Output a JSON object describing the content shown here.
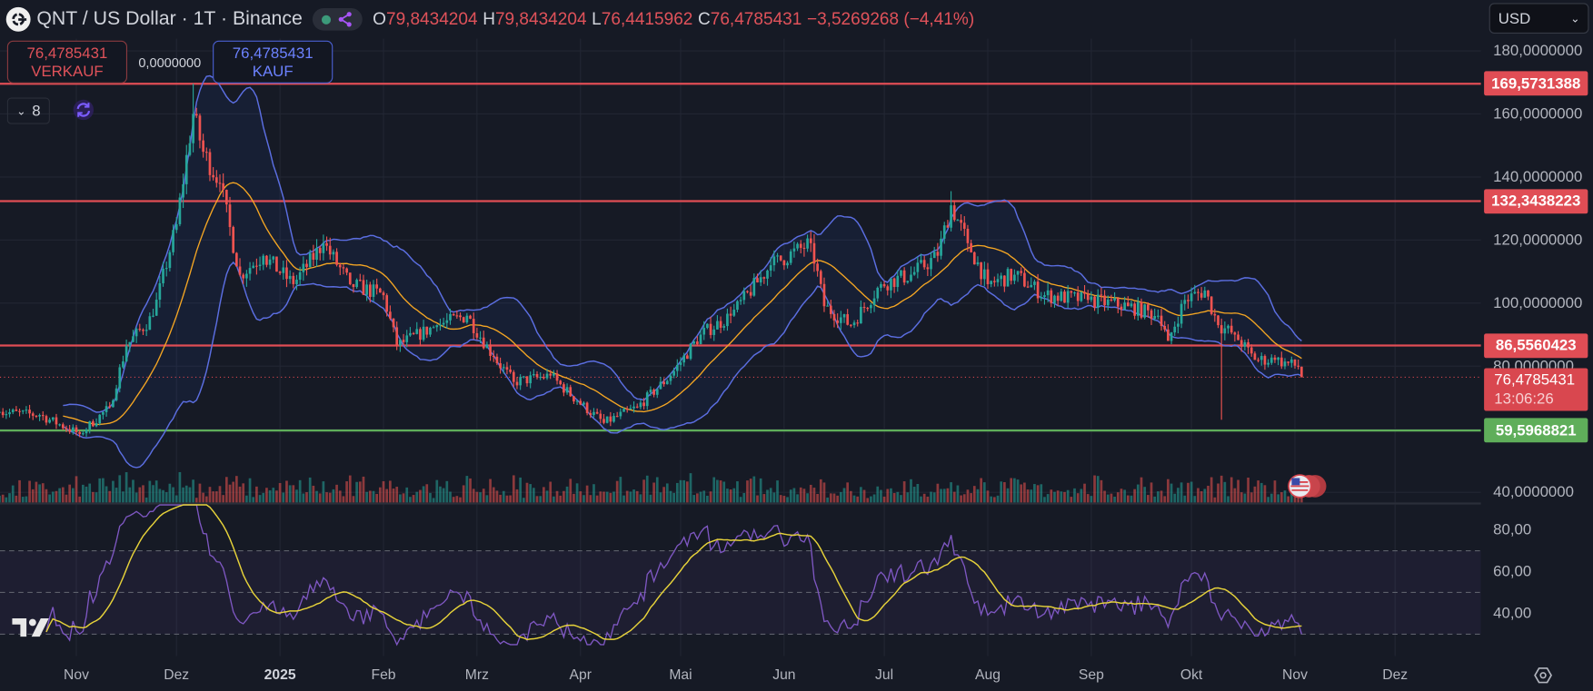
{
  "header": {
    "symbol_title": "QNT / US Dollar · 1T · Binance",
    "ohlc": {
      "o_label": "O",
      "o": "79,8434204",
      "h_label": "H",
      "h": "79,8434204",
      "l_label": "L",
      "l": "76,4415962",
      "c_label": "C",
      "c": "76,4785431",
      "change": "−3,5269268 (−4,41%)"
    }
  },
  "trade": {
    "sell_price": "76,4785431",
    "sell_label": "VERKAUF",
    "spread": "0,0000000",
    "buy_price": "76,4785431",
    "buy_label": "KAUF"
  },
  "indicators_toggle": {
    "count": "8"
  },
  "currency": "USD",
  "price_axis": {
    "ticks": [
      {
        "value": 180,
        "label": "180,0000000"
      },
      {
        "value": 160,
        "label": "160,0000000"
      },
      {
        "value": 140,
        "label": "140,0000000"
      },
      {
        "value": 120,
        "label": "120,0000000"
      },
      {
        "value": 100,
        "label": "100,0000000"
      },
      {
        "value": 80,
        "label": "80,0000000"
      },
      {
        "value": 40,
        "label": "40,0000000"
      }
    ]
  },
  "levels": [
    {
      "value": 169.5731388,
      "label": "169,5731388",
      "color": "#e04d55"
    },
    {
      "value": 132.3438223,
      "label": "132,3438223",
      "color": "#e04d55"
    },
    {
      "value": 86.5560423,
      "label": "86,5560423",
      "color": "#e04d55"
    },
    {
      "value": 59.5968821,
      "label": "59,5968821",
      "color": "#5fae5a"
    }
  ],
  "last_price": {
    "value": 76.4785431,
    "label": "76,4785431",
    "countdown": "13:06:26",
    "color": "#d9474f"
  },
  "rsi_axis": {
    "ticks": [
      {
        "value": 80,
        "label": "80,00"
      },
      {
        "value": 60,
        "label": "60,00"
      },
      {
        "value": 40,
        "label": "40,00"
      }
    ],
    "bands": [
      70,
      50,
      30
    ]
  },
  "time_axis": {
    "labels": [
      {
        "date": "2024-11-01",
        "label": "Nov"
      },
      {
        "date": "2024-12-01",
        "label": "Dez"
      },
      {
        "date": "2025-01-01",
        "label": "2025",
        "year": true
      },
      {
        "date": "2025-02-01",
        "label": "Feb"
      },
      {
        "date": "2025-03-01",
        "label": "Mrz"
      },
      {
        "date": "2025-04-01",
        "label": "Apr"
      },
      {
        "date": "2025-05-01",
        "label": "Mai"
      },
      {
        "date": "2025-06-01",
        "label": "Jun"
      },
      {
        "date": "2025-07-01",
        "label": "Jul"
      },
      {
        "date": "2025-08-01",
        "label": "Aug"
      },
      {
        "date": "2025-09-01",
        "label": "Sep"
      },
      {
        "date": "2025-10-01",
        "label": "Okt"
      },
      {
        "date": "2025-11-01",
        "label": "Nov"
      },
      {
        "date": "2025-12-01",
        "label": "Dez"
      }
    ]
  },
  "colors": {
    "up": "#26a69a",
    "down": "#ef5350",
    "bollinger": "#5b6ee1",
    "basis": "#f5a623",
    "rsi": "#7e57c2",
    "rsi_ma": "#e6d23a",
    "background": "#161a25"
  },
  "chart_data": {
    "type": "candlestick",
    "interval": "1 day",
    "ylim": [
      35,
      185
    ],
    "rsi_ylim": [
      20,
      90
    ],
    "grid": true,
    "overlays": [
      "Bollinger Bands (20, 2)",
      "Volume",
      "RSI (14) with MA"
    ],
    "close_anchors": [
      [
        "2024-10-09",
        65.5
      ],
      [
        "2024-10-21",
        64.5
      ],
      [
        "2024-11-02",
        58.5
      ],
      [
        "2024-11-11",
        67
      ],
      [
        "2024-11-16",
        86.5
      ],
      [
        "2024-11-24",
        96
      ],
      [
        "2024-12-01",
        125
      ],
      [
        "2024-12-06",
        160
      ],
      [
        "2024-12-09",
        148
      ],
      [
        "2024-12-14",
        138
      ],
      [
        "2024-12-20",
        109
      ],
      [
        "2024-12-27",
        115
      ],
      [
        "2025-01-05",
        106
      ],
      [
        "2025-01-14",
        119
      ],
      [
        "2025-01-22",
        106
      ],
      [
        "2025-02-01",
        102.5
      ],
      [
        "2025-02-05",
        86.5
      ],
      [
        "2025-02-17",
        93
      ],
      [
        "2025-02-26",
        96
      ],
      [
        "2025-03-06",
        83
      ],
      [
        "2025-03-12",
        75
      ],
      [
        "2025-03-23",
        77
      ],
      [
        "2025-03-31",
        69
      ],
      [
        "2025-04-08",
        62
      ],
      [
        "2025-04-18",
        67
      ],
      [
        "2025-04-28",
        77
      ],
      [
        "2025-05-07",
        90
      ],
      [
        "2025-05-16",
        96
      ],
      [
        "2025-05-28",
        112
      ],
      [
        "2025-06-09",
        119
      ],
      [
        "2025-06-13",
        99
      ],
      [
        "2025-06-21",
        93
      ],
      [
        "2025-06-30",
        106
      ],
      [
        "2025-07-09",
        109
      ],
      [
        "2025-07-17",
        115
      ],
      [
        "2025-07-21",
        131
      ],
      [
        "2025-07-26",
        119
      ],
      [
        "2025-08-01",
        106
      ],
      [
        "2025-08-09",
        109
      ],
      [
        "2025-08-18",
        102.5
      ],
      [
        "2025-08-31",
        101
      ],
      [
        "2025-09-12",
        99
      ],
      [
        "2025-09-21",
        96
      ],
      [
        "2025-09-24",
        88
      ],
      [
        "2025-09-29",
        101
      ],
      [
        "2025-10-05",
        104
      ],
      [
        "2025-10-09",
        93
      ],
      [
        "2025-10-14",
        90
      ],
      [
        "2025-10-20",
        82
      ],
      [
        "2025-10-26",
        82
      ],
      [
        "2025-11-02",
        79.84
      ]
    ],
    "notable_wicks": [
      {
        "date": "2024-12-06",
        "high": 169.6
      },
      {
        "date": "2025-07-21",
        "high": 135.5
      },
      {
        "date": "2025-10-10",
        "low": 63
      }
    ],
    "last_candle": {
      "date": "2025-11-03",
      "open": 79.8434204,
      "high": 79.8434204,
      "low": 76.4415962,
      "close": 76.4785431
    }
  }
}
